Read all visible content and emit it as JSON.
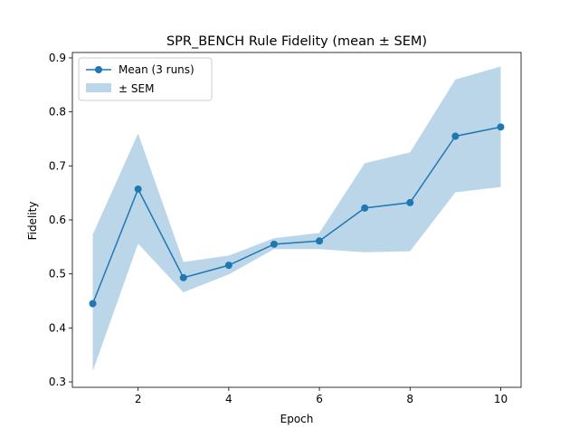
{
  "chart_data": {
    "type": "line",
    "title": "SPR_BENCH Rule Fidelity (mean ± SEM)",
    "xlabel": "Epoch",
    "ylabel": "Fidelity",
    "xlim": [
      0.55,
      10.45
    ],
    "ylim": [
      0.29,
      0.91
    ],
    "xticks": [
      2,
      4,
      6,
      8,
      10
    ],
    "yticks": [
      0.3,
      0.4,
      0.5,
      0.6,
      0.7,
      0.8,
      0.9
    ],
    "grid": false,
    "legend_position": "upper left",
    "x": [
      1,
      2,
      3,
      4,
      5,
      6,
      7,
      8,
      9,
      10
    ],
    "series": [
      {
        "name": "Mean (3 runs)",
        "color": "#1f77b4",
        "values": [
          0.445,
          0.657,
          0.493,
          0.516,
          0.555,
          0.561,
          0.622,
          0.632,
          0.755,
          0.772
        ]
      }
    ],
    "band": {
      "name": "± SEM",
      "color": "#1f77b4",
      "lower": [
        0.32,
        0.556,
        0.466,
        0.499,
        0.546,
        0.546,
        0.54,
        0.542,
        0.651,
        0.661
      ],
      "upper": [
        0.573,
        0.76,
        0.522,
        0.534,
        0.566,
        0.576,
        0.705,
        0.725,
        0.86,
        0.884
      ]
    }
  }
}
